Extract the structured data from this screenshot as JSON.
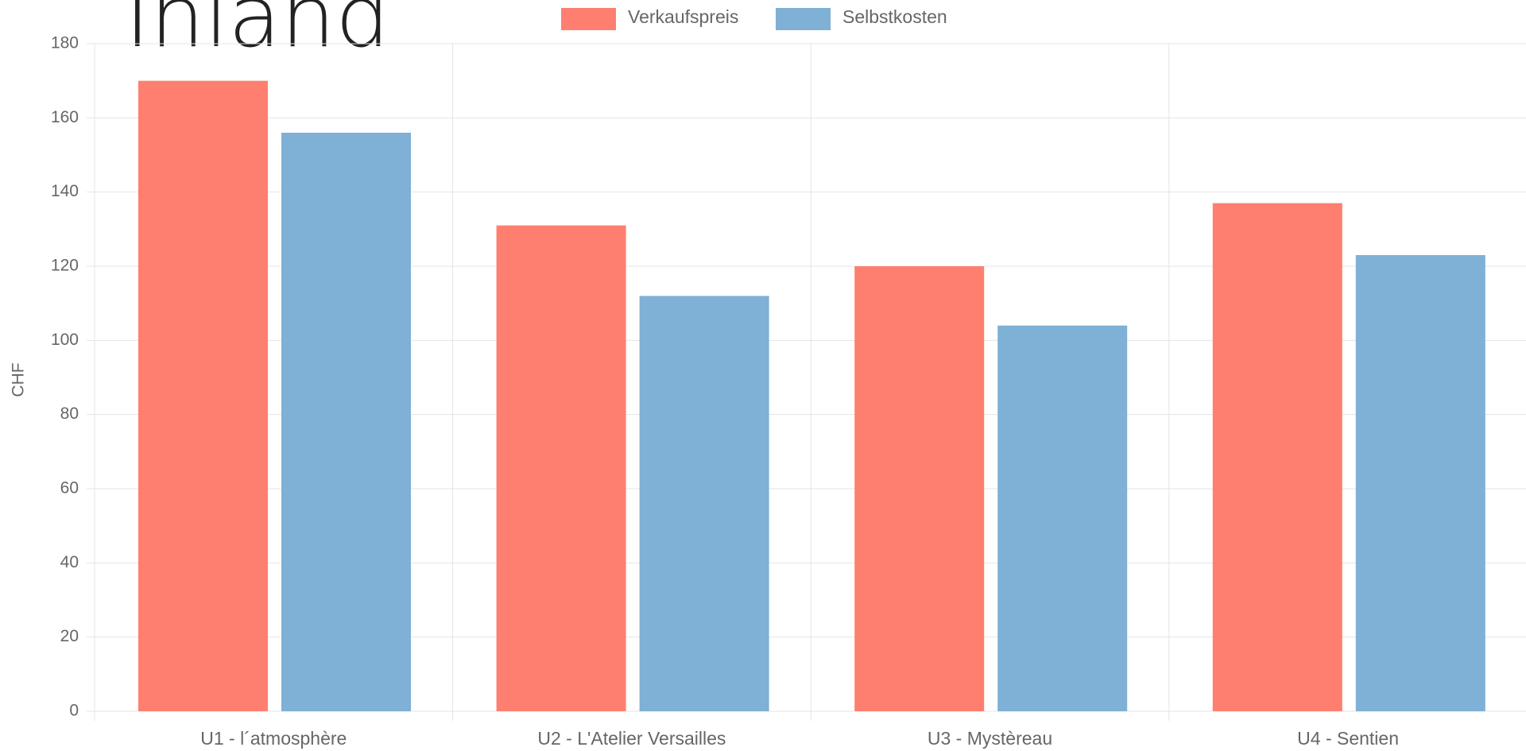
{
  "chart_data": {
    "type": "bar",
    "title": "Inland",
    "categories": [
      "U1 - l´atmosphère",
      "U2 - L'Atelier Versailles",
      "U3 - Mystèreau",
      "U4 - Sentien"
    ],
    "series": [
      {
        "name": "Verkaufspreis",
        "color": "#fe7f6f",
        "values": [
          170,
          131,
          120,
          137
        ]
      },
      {
        "name": "Selbstkosten",
        "color": "#7fb0d5",
        "values": [
          156,
          112,
          104,
          123
        ]
      }
    ],
    "ylabel": "CHF",
    "ylim": [
      0,
      180
    ],
    "yticks": [
      0,
      20,
      40,
      60,
      80,
      100,
      120,
      140,
      160,
      180
    ],
    "grid": true,
    "legend": "top"
  }
}
